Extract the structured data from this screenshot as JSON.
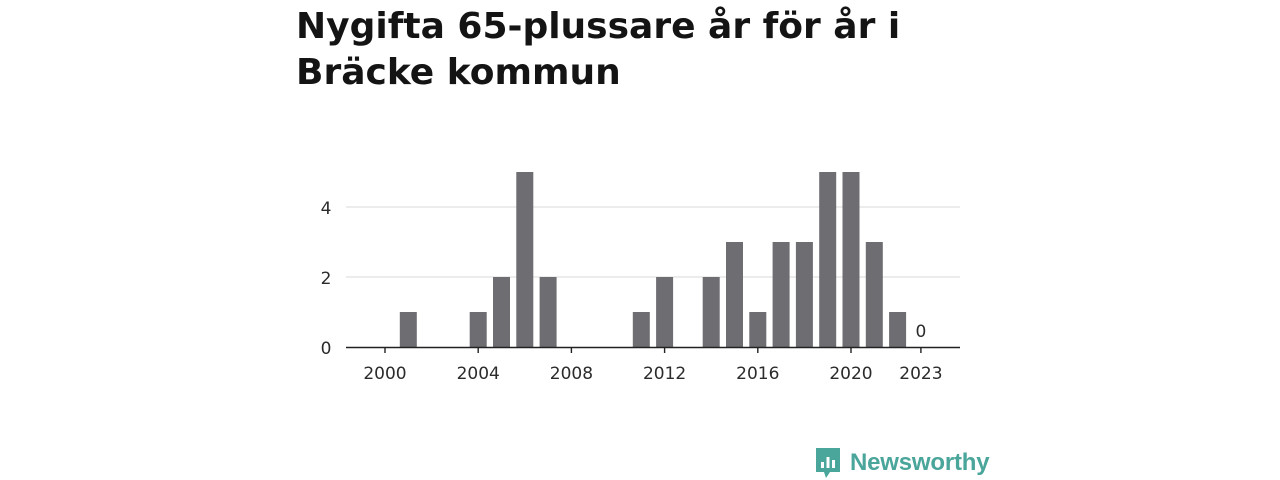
{
  "header": {
    "title": "Nygifta 65-plussare år för år i Bräcke kommun"
  },
  "chart_data": {
    "type": "bar",
    "x": [
      2000,
      2001,
      2002,
      2003,
      2004,
      2005,
      2006,
      2007,
      2008,
      2009,
      2010,
      2011,
      2012,
      2013,
      2014,
      2015,
      2016,
      2017,
      2018,
      2019,
      2020,
      2021,
      2022,
      2023
    ],
    "values": [
      0,
      1,
      0,
      0,
      1,
      2,
      5,
      2,
      0,
      0,
      0,
      1,
      2,
      0,
      2,
      3,
      1,
      3,
      3,
      5,
      5,
      3,
      1,
      0
    ],
    "x_tick_labels": [
      "2000",
      "2004",
      "2008",
      "2012",
      "2016",
      "2020",
      "2023"
    ],
    "y_tick_labels": [
      "0",
      "2",
      "4"
    ],
    "ylim": [
      0,
      5
    ],
    "grid": true,
    "bar_color": "#6d6d72",
    "annotations": [
      {
        "x": 2023,
        "text": "0"
      }
    ],
    "xlabel": "",
    "ylabel": ""
  },
  "branding": {
    "logo_text": "Newsworthy",
    "logo_icon": "newsworthy-logo-icon",
    "color": "#4aa59a"
  }
}
